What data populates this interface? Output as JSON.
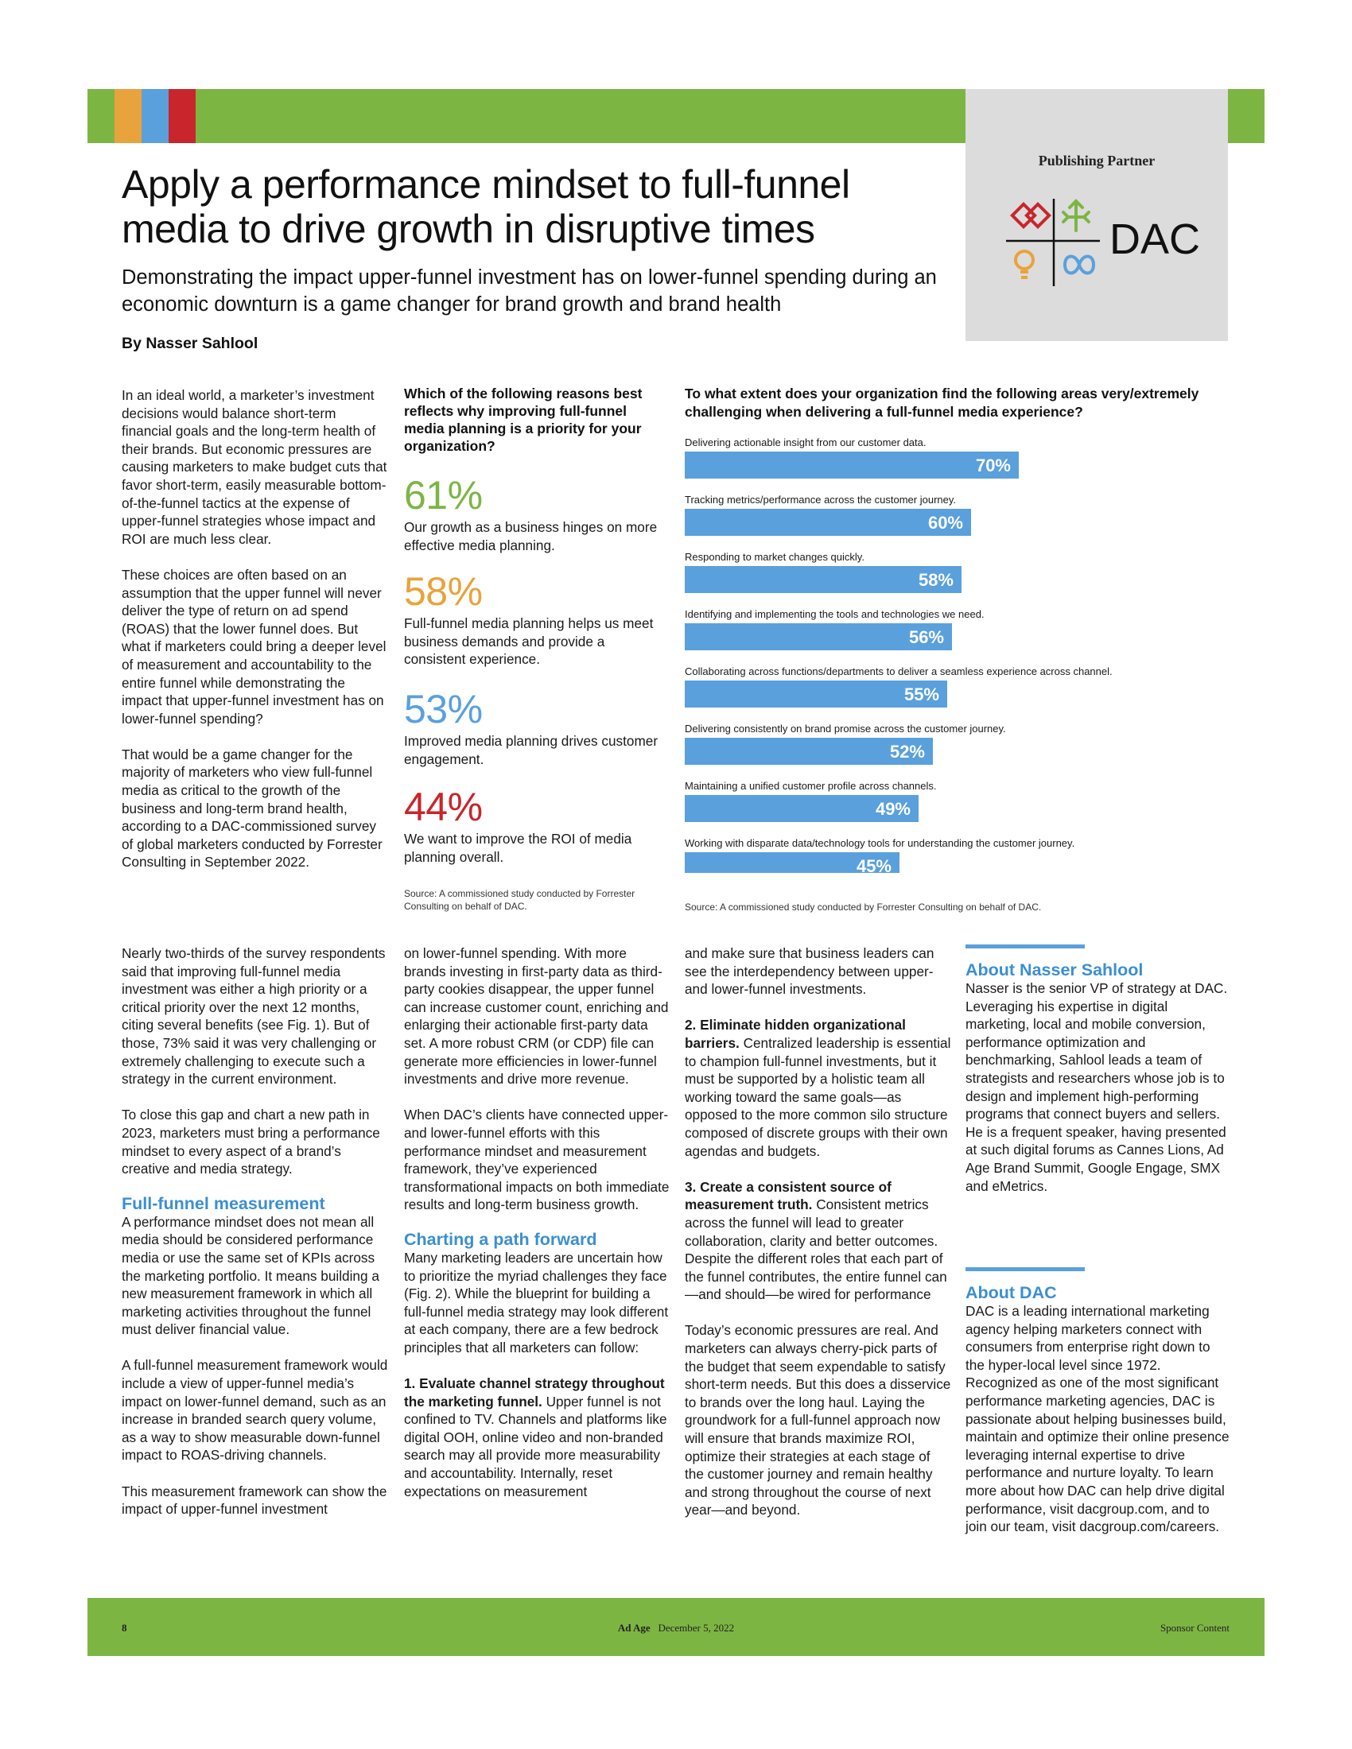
{
  "colors": {
    "band_green": "#7db543",
    "stripe_orange": "#e8a33c",
    "stripe_blue": "#5aa0dc",
    "stripe_red": "#c9252c",
    "bar_blue": "#5aa0dc",
    "stat_green": "#7db543",
    "stat_orange": "#e8a33c",
    "stat_blue": "#5aa0dc",
    "stat_red": "#c9252c"
  },
  "partner": {
    "label": "Publishing Partner",
    "logo_text": "DAC"
  },
  "headline": "Apply a performance mindset to full-funnel media to drive growth in disruptive times",
  "subhead": "Demonstrating the impact upper-funnel investment has on lower-funnel spending during an economic downturn is a game changer for brand growth and brand health",
  "byline": "By Nasser Sahlool",
  "col1_top": [
    "In an ideal world, a marketer’s investment decisions would balance short-term financial goals and the long-term health of their brands. But economic pressures are causing marketers to make budget cuts that favor short-term, easily measurable bottom-of-the-funnel tactics at the expense of upper-funnel strategies whose impact and ROI are much less clear.",
    "These choices are often based on an assumption that the upper funnel will never deliver the type of return on ad spend (ROAS) that the lower funnel does. But what if marketers could bring a deeper level of measurement and accountability to the entire funnel while demonstrating the impact that upper-funnel investment has on lower-funnel spending?",
    "That would be a game changer for the majority of marketers who view full-funnel media as critical to the growth of the business and long-term brand health, according to a DAC-commissioned survey of global marketers conducted by Forrester Consulting in September 2022."
  ],
  "stats": {
    "question": "Which of the following reasons best reflects why improving full-funnel media planning is a priority for your organization?",
    "items": [
      {
        "pct": "61%",
        "text": "Our growth as a business hinges on more effective media planning."
      },
      {
        "pct": "58%",
        "text": "Full-funnel media planning helps us meet business demands and provide a consistent experience."
      },
      {
        "pct": "53%",
        "text": "Improved media planning drives customer engagement."
      },
      {
        "pct": "44%",
        "text": "We want to improve the ROI of media planning overall."
      }
    ],
    "source": "Source: A commissioned study conducted by Forrester Consulting on behalf of DAC."
  },
  "chart_data": {
    "type": "bar",
    "title": "To what extent does your organization find the following areas very/extremely challenging when delivering a full-funnel media experience?",
    "categories": [
      "Delivering actionable insight from our customer data.",
      "Tracking metrics/performance across the customer journey.",
      "Responding to market changes quickly.",
      "Identifying and implementing the tools and technologies we need.",
      "Collaborating across functions/departments to deliver a seamless experience across channel.",
      "Delivering consistently on brand promise across the customer journey.",
      "Maintaining a unified customer profile across channels.",
      "Working with disparate data/technology tools for understanding the customer journey."
    ],
    "values": [
      70,
      60,
      58,
      56,
      55,
      52,
      49,
      45
    ],
    "value_labels": [
      "70%",
      "60%",
      "58%",
      "56%",
      "55%",
      "52%",
      "49%",
      "45%"
    ],
    "xlim": [
      0,
      100
    ],
    "unit": "%",
    "source": "Source: A commissioned study conducted by Forrester Consulting on behalf of DAC."
  },
  "col1_bot": {
    "p1": "Nearly two-thirds of the survey respondents said that improving full-funnel media investment was either a high priority or a critical priority over the next 12 months, citing several benefits (see Fig. 1). But of those, 73% said it was very challenging or extremely challenging to execute such a strategy in the current environment.",
    "p2": "To close this gap and chart a new path in 2023, marketers must bring a performance mindset to every aspect of a brand’s creative and media strategy.",
    "heading": "Full-funnel measurement",
    "p3": "A performance mindset does not mean all media should be considered performance media or use the same set of KPIs across the marketing portfolio. It means building a new measurement framework in which all marketing activities throughout the funnel must deliver financial value.",
    "p4": "A full-funnel measurement framework would include a view of upper-funnel media’s impact on lower-funnel demand, such as an increase in branded search query volume, as a way to show measurable down-funnel impact to ROAS-driving channels.",
    "p5": "This measurement framework can show the impact of upper-funnel investment"
  },
  "col2_bot": {
    "p1": "on lower-funnel spending. With more brands investing in first-party data as third-party cookies disappear, the upper funnel can increase customer count, enriching and enlarging their actionable first-party data set. A more robust CRM (or CDP) file can generate more efficiencies in lower-funnel investments and drive more revenue.",
    "p2": "When DAC’s clients have connected upper- and lower-funnel efforts with this performance mindset and measurement framework, they’ve experienced transformational impacts on both immediate results and long-term business growth.",
    "heading": "Charting a path forward",
    "p3": "Many marketing leaders are uncertain how to prioritize the myriad challenges they face (Fig. 2). While the blueprint for building a full-funnel media strategy may look different at each company, there are a few bedrock principles that all marketers can follow:",
    "p4_bold": "1. Evaluate channel strategy throughout the marketing funnel.",
    "p4": " Upper funnel is not confined to TV. Channels and platforms like digital OOH, online video and non-branded search may all provide more measurability and accountability. Internally, reset expectations on measurement"
  },
  "col3_bot": {
    "p1": "and make sure that business leaders can see the interdependency between upper- and lower-funnel investments.",
    "p2_bold": "2. Eliminate hidden organizational barriers.",
    "p2": " Centralized leadership is essential to champion full-funnel investments, but it must be supported by a holistic team all working toward the same goals—as opposed to the more common silo structure composed of discrete groups with their own agendas and budgets.",
    "p3_bold": "3. Create a consistent source of measurement truth.",
    "p3": " Consistent metrics across the funnel will lead to greater collaboration, clarity and better outcomes. Despite the different roles that each part of the funnel contributes, the entire funnel can—and should—be wired for performance",
    "p4": "Today’s economic pressures are real. And marketers can always cherry-pick parts of the budget that seem expendable to satisfy short-term needs. But this does a disservice to brands over the long haul. Laying the groundwork for a full-funnel approach now will ensure that brands maximize ROI, optimize their strategies at each stage of the customer journey and remain healthy and strong throughout the course of next year—and beyond."
  },
  "about_author": {
    "heading": "About Nasser Sahlool",
    "text": "Nasser is the senior VP of strategy at DAC. Leveraging his expertise in digital marketing, local and mobile conversion, performance optimization and benchmarking, Sahlool leads a team of strategists and researchers whose job is to design and implement high-performing programs that connect buyers and sellers. He is a frequent speaker, having presented at such digital forums as Cannes Lions, Ad Age Brand Summit, Google Engage, SMX and eMetrics."
  },
  "about_dac": {
    "heading": "About DAC",
    "text": "DAC is a leading international marketing agency helping marketers connect with consumers from enterprise right down to the hyper-local level since 1972. Recognized as one of the most significant performance marketing agencies, DAC is passionate about helping businesses build, maintain and optimize their online presence leveraging internal expertise to drive performance and nurture loyalty. To learn more about how DAC can help drive digital performance, visit dacgroup.com, and to join our team, visit dacgroup.com/careers."
  },
  "footer": {
    "page": "8",
    "publication": "Ad Age",
    "date": "December 5, 2022",
    "right": "Sponsor Content"
  }
}
